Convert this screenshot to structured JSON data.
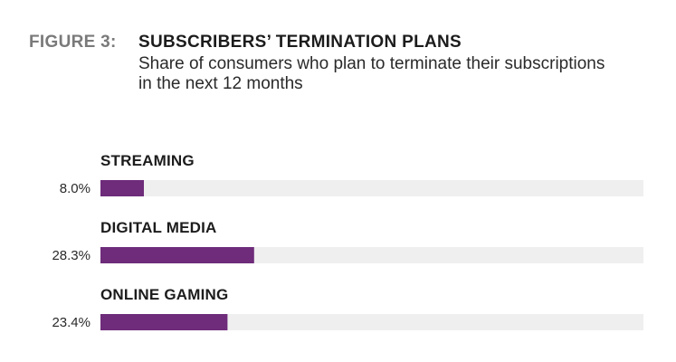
{
  "figure": {
    "label": "FIGURE 3:",
    "title": "SUBSCRIBERS’ TERMINATION PLANS",
    "subtitle": "Share of consumers who plan to terminate their subscriptions in the next 12 months"
  },
  "colors": {
    "bar": "#6e2c7a",
    "track": "#efefef",
    "figure_label": "#7a7a7a"
  },
  "chart_data": {
    "type": "bar",
    "orientation": "horizontal",
    "categories": [
      "STREAMING",
      "DIGITAL MEDIA",
      "ONLINE GAMING"
    ],
    "values": [
      8.0,
      28.3,
      23.4
    ],
    "value_labels": [
      "8.0%",
      "28.3%",
      "23.4%"
    ],
    "xlim": [
      0,
      100
    ],
    "grid": false,
    "legend": "none"
  }
}
